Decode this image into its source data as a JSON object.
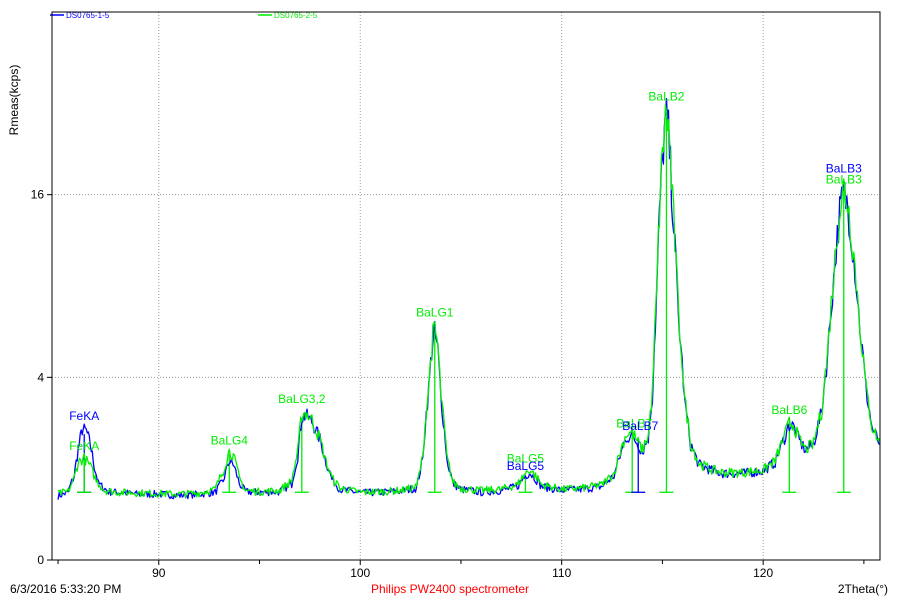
{
  "footer": {
    "timestamp": "6/3/2016 5:33:20 PM",
    "instrument": "Philips PW2400 spectrometer",
    "x_axis_label": "2Theta(°)"
  },
  "chart_data": {
    "type": "line",
    "title": "",
    "xlabel": "2Theta(°)",
    "ylabel": "Rmeas(kcps)",
    "xlim": [
      84.7,
      125.8
    ],
    "y_scale": "sqrt",
    "ylim": [
      0,
      36
    ],
    "x_ticks": [
      90,
      100,
      110,
      120
    ],
    "y_ticks": [
      0,
      4,
      16
    ],
    "grid": true,
    "legend_position": "top-left",
    "series": [
      {
        "name": "DS0765-1-5",
        "color": "#0000ff",
        "points": [
          [
            85,
            0.49
          ],
          [
            85.5,
            0.55
          ],
          [
            85.8,
            0.85
          ],
          [
            86.0,
            1.45
          ],
          [
            86.2,
            2.05
          ],
          [
            86.4,
            2.0
          ],
          [
            86.6,
            1.6
          ],
          [
            86.8,
            1.05
          ],
          [
            87.0,
            0.7
          ],
          [
            87.5,
            0.56
          ],
          [
            88,
            0.55
          ],
          [
            89,
            0.52
          ],
          [
            90,
            0.52
          ],
          [
            91,
            0.5
          ],
          [
            92,
            0.52
          ],
          [
            92.8,
            0.55
          ],
          [
            93.2,
            0.75
          ],
          [
            93.5,
            1.18
          ],
          [
            93.7,
            1.1
          ],
          [
            94.0,
            0.7
          ],
          [
            94.3,
            0.56
          ],
          [
            95,
            0.55
          ],
          [
            96,
            0.56
          ],
          [
            96.6,
            0.7
          ],
          [
            96.9,
            1.3
          ],
          [
            97.1,
            2.45
          ],
          [
            97.3,
            2.5
          ],
          [
            97.6,
            2.3
          ],
          [
            98.0,
            1.75
          ],
          [
            98.3,
            1.15
          ],
          [
            98.6,
            0.78
          ],
          [
            99,
            0.6
          ],
          [
            100,
            0.54
          ],
          [
            101,
            0.55
          ],
          [
            102,
            0.57
          ],
          [
            102.8,
            0.62
          ],
          [
            103.1,
            1.2
          ],
          [
            103.4,
            3.5
          ],
          [
            103.6,
            5.8
          ],
          [
            103.7,
            6.2
          ],
          [
            103.85,
            5.3
          ],
          [
            104.0,
            3.2
          ],
          [
            104.3,
            1.2
          ],
          [
            104.6,
            0.7
          ],
          [
            105,
            0.6
          ],
          [
            106,
            0.55
          ],
          [
            107,
            0.58
          ],
          [
            107.8,
            0.65
          ],
          [
            108.2,
            0.85
          ],
          [
            108.4,
            0.92
          ],
          [
            108.7,
            0.8
          ],
          [
            109,
            0.65
          ],
          [
            110,
            0.58
          ],
          [
            111,
            0.6
          ],
          [
            112,
            0.65
          ],
          [
            112.6,
            0.85
          ],
          [
            112.9,
            1.3
          ],
          [
            113.2,
            1.8
          ],
          [
            113.5,
            1.85
          ],
          [
            113.8,
            1.6
          ],
          [
            114.0,
            1.4
          ],
          [
            114.3,
            1.8
          ],
          [
            114.5,
            3.2
          ],
          [
            114.7,
            8
          ],
          [
            114.9,
            16
          ],
          [
            115.1,
            22
          ],
          [
            115.2,
            23.5
          ],
          [
            115.3,
            22
          ],
          [
            115.5,
            15
          ],
          [
            115.8,
            7
          ],
          [
            116.1,
            3
          ],
          [
            116.4,
            1.6
          ],
          [
            116.8,
            1.1
          ],
          [
            117.5,
            0.95
          ],
          [
            118,
            0.9
          ],
          [
            119,
            0.9
          ],
          [
            120,
            0.95
          ],
          [
            120.6,
            1.15
          ],
          [
            121.0,
            1.7
          ],
          [
            121.3,
            2.2
          ],
          [
            121.5,
            2.15
          ],
          [
            121.8,
            1.7
          ],
          [
            122.1,
            1.45
          ],
          [
            122.5,
            1.6
          ],
          [
            122.9,
            2.6
          ],
          [
            123.2,
            5
          ],
          [
            123.5,
            9.5
          ],
          [
            123.8,
            14.5
          ],
          [
            124.0,
            16.2
          ],
          [
            124.2,
            15
          ],
          [
            124.5,
            11
          ],
          [
            124.8,
            6.5
          ],
          [
            125.1,
            3.5
          ],
          [
            125.4,
            2.1
          ],
          [
            125.8,
            1.6
          ]
        ]
      },
      {
        "name": "DS0765-2-5",
        "color": "#00ee00",
        "points": [
          [
            85,
            0.53
          ],
          [
            85.5,
            0.56
          ],
          [
            85.8,
            0.8
          ],
          [
            86.0,
            1.15
          ],
          [
            86.3,
            1.25
          ],
          [
            86.6,
            1.05
          ],
          [
            86.9,
            0.75
          ],
          [
            87.3,
            0.58
          ],
          [
            88,
            0.55
          ],
          [
            89,
            0.54
          ],
          [
            90,
            0.53
          ],
          [
            91,
            0.52
          ],
          [
            92,
            0.54
          ],
          [
            92.8,
            0.6
          ],
          [
            93.2,
            0.95
          ],
          [
            93.5,
            1.42
          ],
          [
            93.7,
            1.3
          ],
          [
            94.0,
            0.8
          ],
          [
            94.3,
            0.58
          ],
          [
            95,
            0.56
          ],
          [
            96,
            0.58
          ],
          [
            96.6,
            0.75
          ],
          [
            96.9,
            1.4
          ],
          [
            97.1,
            2.55
          ],
          [
            97.3,
            2.6
          ],
          [
            97.6,
            2.35
          ],
          [
            98.0,
            1.75
          ],
          [
            98.3,
            1.15
          ],
          [
            98.6,
            0.8
          ],
          [
            99,
            0.62
          ],
          [
            100,
            0.55
          ],
          [
            101,
            0.56
          ],
          [
            102,
            0.58
          ],
          [
            102.8,
            0.64
          ],
          [
            103.1,
            1.25
          ],
          [
            103.4,
            3.6
          ],
          [
            103.6,
            6.0
          ],
          [
            103.7,
            6.4
          ],
          [
            103.85,
            5.5
          ],
          [
            104.0,
            3.3
          ],
          [
            104.3,
            1.25
          ],
          [
            104.6,
            0.72
          ],
          [
            105,
            0.62
          ],
          [
            106,
            0.58
          ],
          [
            107,
            0.6
          ],
          [
            107.8,
            0.68
          ],
          [
            108.2,
            0.9
          ],
          [
            108.4,
            0.98
          ],
          [
            108.7,
            0.85
          ],
          [
            109,
            0.68
          ],
          [
            110,
            0.6
          ],
          [
            111,
            0.62
          ],
          [
            112,
            0.68
          ],
          [
            112.6,
            0.9
          ],
          [
            112.9,
            1.4
          ],
          [
            113.2,
            1.9
          ],
          [
            113.5,
            1.95
          ],
          [
            113.8,
            1.65
          ],
          [
            114.0,
            1.45
          ],
          [
            114.3,
            1.85
          ],
          [
            114.5,
            3.3
          ],
          [
            114.7,
            8.2
          ],
          [
            114.9,
            16.5
          ],
          [
            115.1,
            22.5
          ],
          [
            115.2,
            24
          ],
          [
            115.3,
            22.5
          ],
          [
            115.5,
            15.5
          ],
          [
            115.8,
            7.2
          ],
          [
            116.1,
            3.1
          ],
          [
            116.4,
            1.65
          ],
          [
            116.8,
            1.12
          ],
          [
            117.5,
            0.97
          ],
          [
            118,
            0.92
          ],
          [
            119,
            0.92
          ],
          [
            120,
            0.97
          ],
          [
            120.6,
            1.18
          ],
          [
            121.0,
            1.75
          ],
          [
            121.3,
            2.25
          ],
          [
            121.5,
            2.2
          ],
          [
            121.8,
            1.72
          ],
          [
            122.1,
            1.47
          ],
          [
            122.5,
            1.62
          ],
          [
            122.9,
            2.65
          ],
          [
            123.2,
            5.1
          ],
          [
            123.5,
            9.7
          ],
          [
            123.8,
            14.8
          ],
          [
            124.0,
            16.6
          ],
          [
            124.2,
            15.3
          ],
          [
            124.5,
            11.2
          ],
          [
            124.8,
            6.6
          ],
          [
            125.1,
            3.55
          ],
          [
            125.4,
            2.15
          ],
          [
            125.8,
            1.62
          ]
        ]
      }
    ],
    "line_markers": [
      {
        "x": 86.3,
        "top": 1.9,
        "color": "#0000ff"
      },
      {
        "x": 86.3,
        "top": 1.2,
        "color": "#00ee00"
      },
      {
        "x": 93.5,
        "top": 1.35,
        "color": "#00ee00"
      },
      {
        "x": 97.1,
        "top": 2.4,
        "color": "#00ee00"
      },
      {
        "x": 103.7,
        "top": 6.3,
        "color": "#00ee00"
      },
      {
        "x": 108.2,
        "top": 0.85,
        "color": "#00ee00"
      },
      {
        "x": 113.5,
        "top": 1.9,
        "color": "#00ee00"
      },
      {
        "x": 113.8,
        "top": 1.75,
        "color": "#0000ff"
      },
      {
        "x": 115.2,
        "top": 23.5,
        "color": "#00ee00"
      },
      {
        "x": 121.3,
        "top": 2.3,
        "color": "#00ee00"
      },
      {
        "x": 124.0,
        "top": 16.5,
        "color": "#00ee00"
      }
    ],
    "annotations": [
      {
        "text": "FeKA",
        "x": 86.3,
        "y": 2.35,
        "color": "#0000ff"
      },
      {
        "text": "FeKA",
        "x": 86.3,
        "y": 1.45,
        "color": "#00ee00"
      },
      {
        "text": "BaLG4",
        "x": 93.5,
        "y": 1.6,
        "color": "#00ee00"
      },
      {
        "text": "BaLG3,2",
        "x": 97.1,
        "y": 2.95,
        "color": "#00ee00"
      },
      {
        "text": "BaLG1",
        "x": 103.7,
        "y": 7.1,
        "color": "#00ee00"
      },
      {
        "text": "BaLG5",
        "x": 108.2,
        "y": 1.14,
        "color": "#00ee00"
      },
      {
        "text": "BaLG5",
        "x": 108.2,
        "y": 0.97,
        "color": "#0000ff"
      },
      {
        "text": "BaLB7",
        "x": 113.6,
        "y": 2.1,
        "color": "#00ee00"
      },
      {
        "text": "BaLB7",
        "x": 113.9,
        "y": 2.02,
        "color": "#0000ff"
      },
      {
        "text": "BaLB2",
        "x": 115.2,
        "y": 25.3,
        "color": "#00ee00"
      },
      {
        "text": "BaLB6",
        "x": 121.3,
        "y": 2.55,
        "color": "#00ee00"
      },
      {
        "text": "BaLB3",
        "x": 124.0,
        "y": 18.0,
        "color": "#0000ff"
      },
      {
        "text": "BaLB3",
        "x": 124.0,
        "y": 17.0,
        "color": "#00ee00"
      }
    ]
  }
}
